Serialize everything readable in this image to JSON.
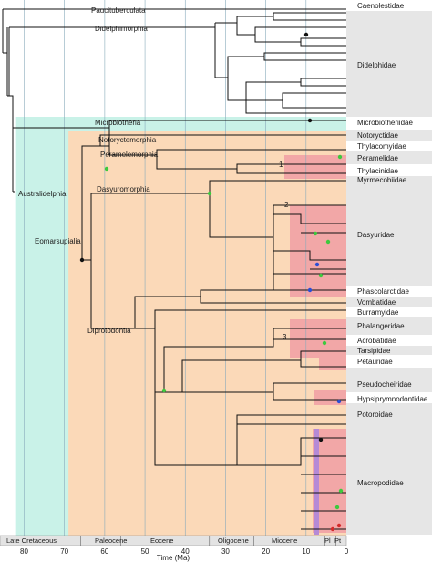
{
  "colors": {
    "australidelphia_bg": "#c9f2e8",
    "eomarsupialia_bg": "#fbd9b8",
    "highlight": "#f2a7a7",
    "purple_bar": "#b58ad6",
    "family_band": "#e6e6e6",
    "node_green": "#3ec93e",
    "node_blue": "#2b4fd6",
    "node_red": "#d42a2a",
    "branch": "#111111"
  },
  "tree": {
    "clades": [
      {
        "id": "paucituberculata",
        "label": "Paucituberculata"
      },
      {
        "id": "didelphimorphia",
        "label": "Didelphimorphia"
      },
      {
        "id": "microbiotheria",
        "label": "Microbiotheria"
      },
      {
        "id": "australidelphia",
        "label": "Australidelphia"
      },
      {
        "id": "notoryctemorphia",
        "label": "Notoryctemorphia"
      },
      {
        "id": "peramelemorphia",
        "label": "Peramelemorphia"
      },
      {
        "id": "dasyuromorphia",
        "label": "Dasyuromorphia"
      },
      {
        "id": "eomarsupialia",
        "label": "Eomarsupialia"
      },
      {
        "id": "diprotodontia",
        "label": "Diprotodontia"
      }
    ],
    "highlight_numbers": [
      "1",
      "2",
      "3"
    ]
  },
  "families": [
    "Caenolestidae",
    "Didelphidae",
    "Microbiotheriidae",
    "Notoryctidae",
    "Thylacomyidae",
    "Peramelidae",
    "Thylacinidae",
    "Myrmecobiidae",
    "Dasyuridae",
    "Phascolarctidae",
    "Vombatidae",
    "Burramyidae",
    "Phalangeridae",
    "Acrobatidae",
    "Tarsipidae",
    "Petauridae",
    "Pseudocheiridae",
    "Hypsiprymnodontidae",
    "Potoroidae",
    "Macropodidae"
  ],
  "timescale": {
    "epochs": [
      "Late Cretaceous",
      "Paleocene",
      "Eocene",
      "Oligocene",
      "Miocene",
      "Pl",
      "Pt"
    ],
    "ticks": [
      "80",
      "70",
      "60",
      "50",
      "40",
      "30",
      "20",
      "10",
      "0"
    ],
    "axis_label": "Time (Ma)",
    "range_ma": [
      86,
      0
    ]
  }
}
